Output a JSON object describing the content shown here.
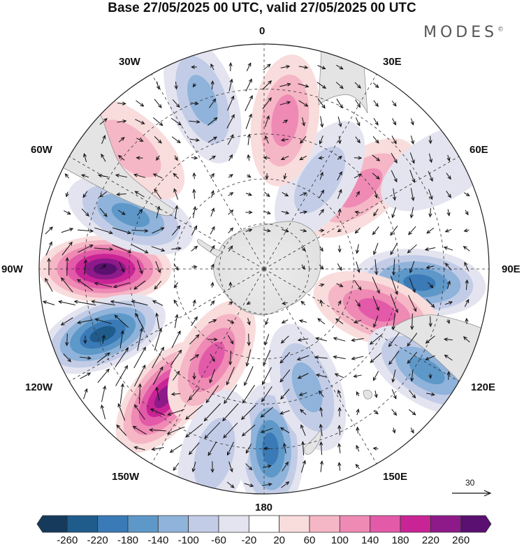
{
  "title": "Base 27/05/2025 00 UTC, valid 27/05/2025 00 UTC",
  "brand": {
    "text": "MODES",
    "mark": "©"
  },
  "longitude_labels": {
    "deg0": "0",
    "deg30E": "30E",
    "deg60E": "60E",
    "deg90E": "90E",
    "deg120E": "120E",
    "deg150E": "150E",
    "deg180": "180",
    "deg150W": "150W",
    "deg120W": "120W",
    "deg90W": "90W",
    "deg60W": "60W",
    "deg30W": "30W"
  },
  "reference_vector": {
    "label": "30"
  },
  "colorbar": {
    "colors": [
      "#163a5c",
      "#1f5c8c",
      "#3a7ab6",
      "#5e98c9",
      "#8fb3da",
      "#c2cce6",
      "#e4e4f0",
      "#ffffff",
      "#f9dcdc",
      "#f5b6c5",
      "#ee8ab4",
      "#e35aa8",
      "#c92496",
      "#8e1a8a",
      "#5a1070"
    ],
    "ticks": [
      "-260",
      "-220",
      "-180",
      "-140",
      "-100",
      "-60",
      "-20",
      "20",
      "60",
      "100",
      "140",
      "180",
      "220",
      "260"
    ]
  },
  "anomaly_centers": [
    {
      "lon": -90,
      "lat": -37,
      "value": 260
    },
    {
      "lon": -112,
      "lat": -32,
      "value": -220
    },
    {
      "lon": -68,
      "lat": -42,
      "value": -170
    },
    {
      "lon": -142,
      "lat": -36,
      "value": 230
    },
    {
      "lon": 178,
      "lat": -30,
      "value": -180
    },
    {
      "lon": -150,
      "lat": -55,
      "value": 150
    },
    {
      "lon": 160,
      "lat": -48,
      "value": -120
    },
    {
      "lon": 95,
      "lat": -38,
      "value": -190
    },
    {
      "lon": 110,
      "lat": -50,
      "value": 140
    },
    {
      "lon": 122,
      "lat": -26,
      "value": -160
    },
    {
      "lon": 50,
      "lat": -48,
      "value": 120
    },
    {
      "lon": 32,
      "lat": -55,
      "value": -90
    },
    {
      "lon": 8,
      "lat": -40,
      "value": 130
    },
    {
      "lon": -20,
      "lat": -30,
      "value": -110
    },
    {
      "lon": -48,
      "lat": -30,
      "value": 80
    },
    {
      "lon": 60,
      "lat": -22,
      "value": -50
    },
    {
      "lon": -165,
      "lat": -26,
      "value": -60
    }
  ]
}
